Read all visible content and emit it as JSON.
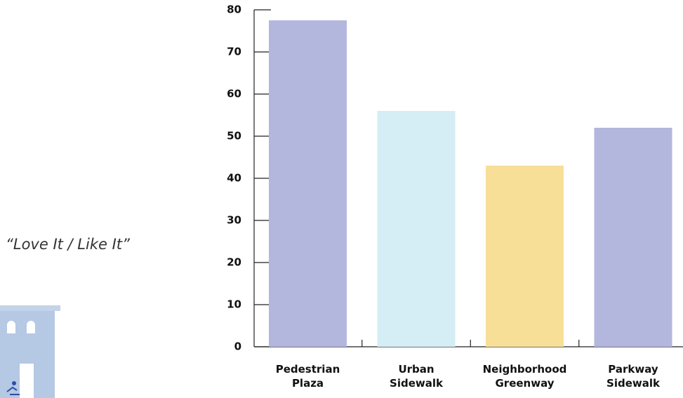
{
  "chart_data": {
    "type": "bar",
    "annotation": "“Love It / Like It”",
    "categories": [
      "Pedestrian Plaza",
      "Urban Sidewalk",
      "Neighborhood Greenway",
      "Parkway Sidewalk"
    ],
    "values": [
      77.5,
      56,
      43,
      52
    ],
    "colors": [
      "#b3b7de",
      "#d5edf4",
      "#f7df98",
      "#b3b7de"
    ],
    "ylim": [
      0,
      80
    ],
    "yticks": [
      0,
      10,
      20,
      30,
      40,
      50,
      60,
      70,
      80
    ]
  }
}
